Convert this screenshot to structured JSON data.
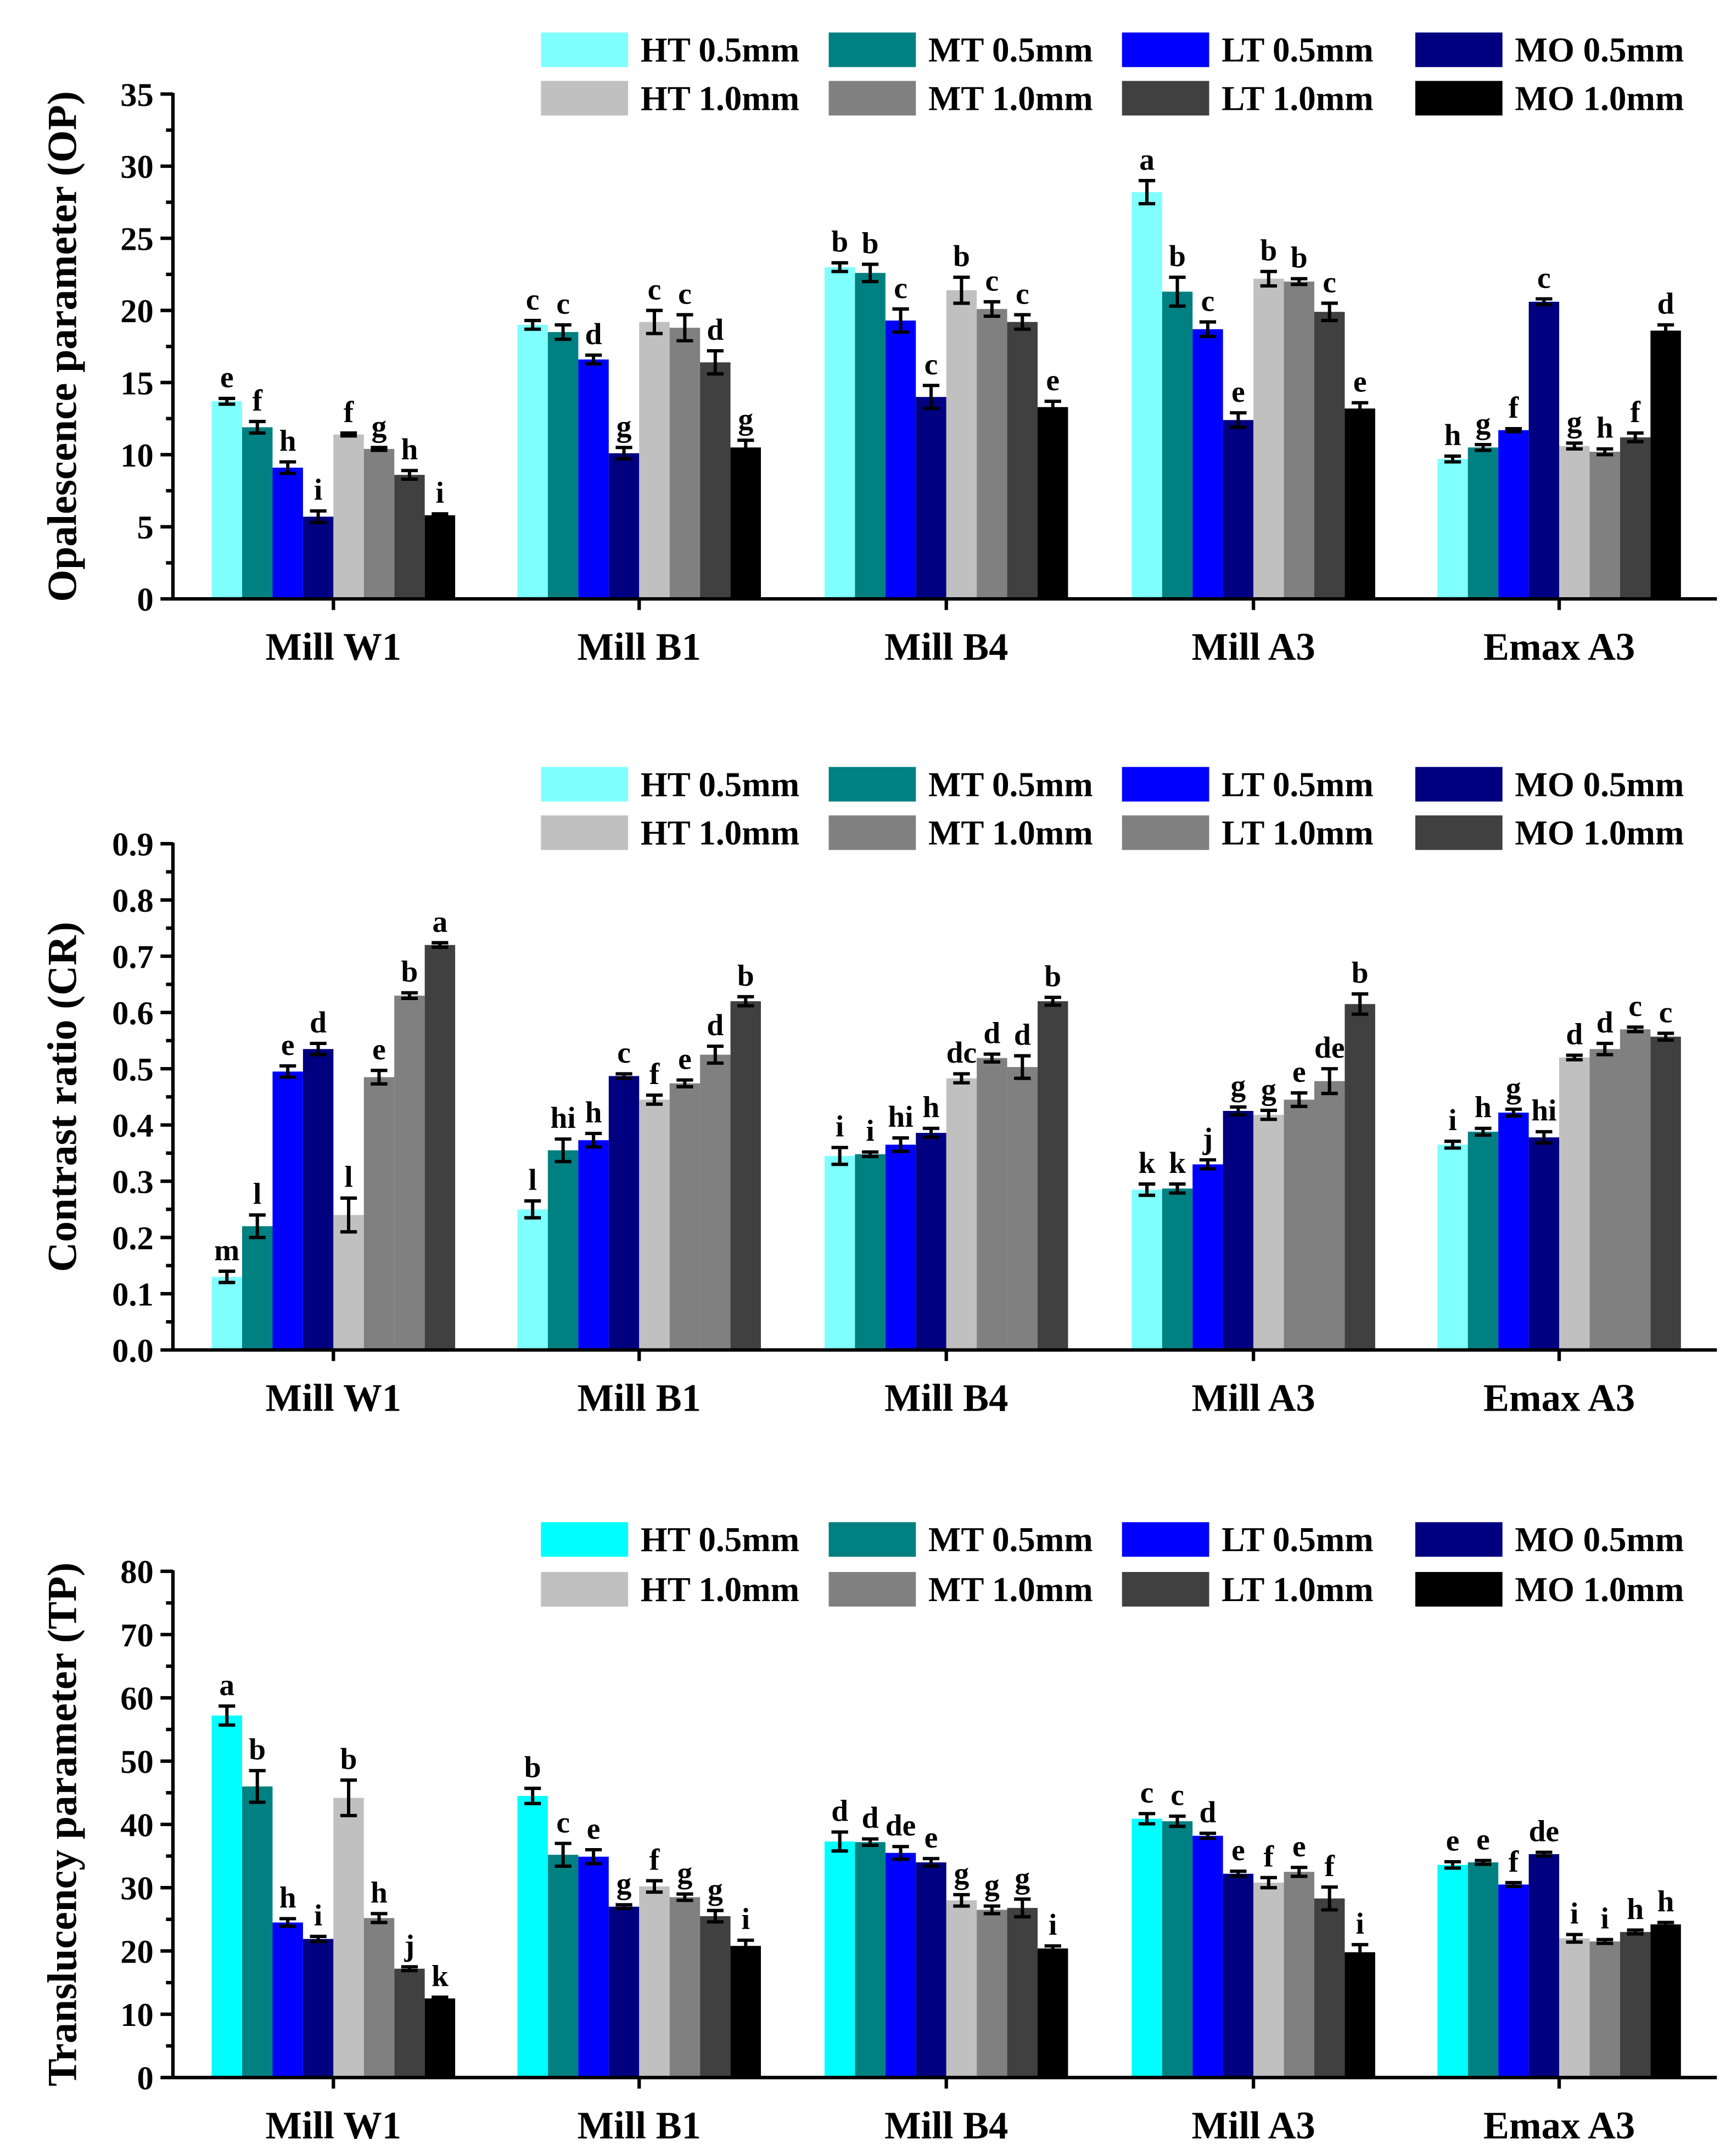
{
  "chart_data": [
    {
      "type": "bar",
      "id": "op",
      "ylabel": "Opalescence parameter (OP)",
      "xlabel": "",
      "ylim": [
        0,
        35
      ],
      "yticks": [
        0,
        5,
        10,
        15,
        20,
        25,
        30,
        35
      ],
      "ytick_labels": [
        "0",
        "5",
        "10",
        "15",
        "20",
        "25",
        "30",
        "35"
      ],
      "categories": [
        "Mill W1",
        "Mill B1",
        "Mill B4",
        "Mill A3",
        "Emax A3"
      ],
      "legend_position": "top-right",
      "series": [
        {
          "name": "HT 0.5mm",
          "color": "#80ffff",
          "values": [
            13.7,
            19.0,
            23.0,
            28.2,
            9.7
          ],
          "errors": [
            0.2,
            0.3,
            0.3,
            0.8,
            0.2
          ],
          "letters": [
            "e",
            "c",
            "b",
            "a",
            "h"
          ]
        },
        {
          "name": "MT 0.5mm",
          "color": "#008080",
          "values": [
            11.9,
            18.5,
            22.6,
            21.3,
            10.5
          ],
          "errors": [
            0.4,
            0.5,
            0.6,
            1.0,
            0.2
          ],
          "letters": [
            "f",
            "c",
            "b",
            "b",
            "g"
          ]
        },
        {
          "name": "LT  0.5mm",
          "color": "#0000ff",
          "values": [
            9.1,
            16.6,
            19.3,
            18.7,
            11.7
          ],
          "errors": [
            0.4,
            0.3,
            0.8,
            0.5,
            0.1
          ],
          "letters": [
            "h",
            "d",
            "c",
            "c",
            "f"
          ]
        },
        {
          "name": "MO 0.5mm",
          "color": "#000080",
          "values": [
            5.7,
            10.1,
            14.0,
            12.4,
            20.6
          ],
          "errors": [
            0.4,
            0.4,
            0.8,
            0.5,
            0.2
          ],
          "letters": [
            "i",
            "g",
            "c",
            "e",
            "c"
          ]
        },
        {
          "name": "HT 1.0mm",
          "color": "#c0c0c0",
          "values": [
            11.4,
            19.2,
            21.4,
            22.2,
            10.6
          ],
          "errors": [
            0.1,
            0.8,
            0.9,
            0.5,
            0.2
          ],
          "letters": [
            "f",
            "c",
            "b",
            "b",
            "g"
          ]
        },
        {
          "name": "MT 1.0mm",
          "color": "#808080",
          "values": [
            10.4,
            18.8,
            20.1,
            22.0,
            10.2
          ],
          "errors": [
            0.1,
            0.9,
            0.5,
            0.2,
            0.2
          ],
          "letters": [
            "g",
            "c",
            "c",
            "b",
            "h"
          ]
        },
        {
          "name": "LT  1.0mm",
          "color": "#404040",
          "values": [
            8.6,
            16.4,
            19.2,
            19.9,
            11.2
          ],
          "errors": [
            0.3,
            0.8,
            0.5,
            0.6,
            0.3
          ],
          "letters": [
            "h",
            "d",
            "c",
            "c",
            "f"
          ]
        },
        {
          "name": "MO 1.0mm",
          "color": "#000000",
          "values": [
            5.8,
            10.5,
            13.3,
            13.2,
            18.6
          ],
          "errors": [
            0.1,
            0.5,
            0.4,
            0.4,
            0.4
          ],
          "letters": [
            "i",
            "g",
            "e",
            "e",
            "d"
          ]
        }
      ]
    },
    {
      "type": "bar",
      "id": "cr",
      "ylabel": "Contrast ratio (CR)",
      "xlabel": "",
      "ylim": [
        0,
        0.9
      ],
      "yticks": [
        0,
        0.1,
        0.2,
        0.3,
        0.4,
        0.5,
        0.6,
        0.7,
        0.8,
        0.9
      ],
      "ytick_labels": [
        "0.0",
        "0.1",
        "0.2",
        "0.3",
        "0.4",
        "0.5",
        "0.6",
        "0.7",
        "0.8",
        "0.9"
      ],
      "categories": [
        "Mill W1",
        "Mill B1",
        "Mill B4",
        "Mill A3",
        "Emax A3"
      ],
      "legend_position": "top-right",
      "series": [
        {
          "name": "HT 0.5mm",
          "color": "#80ffff",
          "values": [
            0.13,
            0.25,
            0.345,
            0.285,
            0.365
          ],
          "errors": [
            0.01,
            0.015,
            0.015,
            0.01,
            0.006
          ],
          "letters": [
            "m",
            "l",
            "i",
            "k",
            "i"
          ]
        },
        {
          "name": "MT 0.5mm",
          "color": "#008080",
          "values": [
            0.22,
            0.355,
            0.348,
            0.287,
            0.388
          ],
          "errors": [
            0.02,
            0.02,
            0.004,
            0.008,
            0.006
          ],
          "letters": [
            "l",
            "hi",
            "i",
            "k",
            "h"
          ]
        },
        {
          "name": "LT  0.5mm",
          "color": "#0000ff",
          "values": [
            0.495,
            0.373,
            0.365,
            0.33,
            0.422
          ],
          "errors": [
            0.01,
            0.012,
            0.012,
            0.008,
            0.006
          ],
          "letters": [
            "e",
            "h",
            "hi",
            "j",
            "g"
          ]
        },
        {
          "name": "MO 0.5mm",
          "color": "#000080",
          "values": [
            0.535,
            0.487,
            0.386,
            0.425,
            0.378
          ],
          "errors": [
            0.01,
            0.004,
            0.008,
            0.007,
            0.01
          ],
          "letters": [
            "d",
            "c",
            "h",
            "g",
            "hi"
          ]
        },
        {
          "name": "HT 1.0mm",
          "color": "#c0c0c0",
          "values": [
            0.24,
            0.445,
            0.483,
            0.418,
            0.52
          ],
          "errors": [
            0.03,
            0.008,
            0.008,
            0.008,
            0.004
          ],
          "letters": [
            "l",
            "f",
            "dc",
            "g",
            "d"
          ]
        },
        {
          "name": "MT 1.0mm",
          "color": "#808080",
          "values": [
            0.485,
            0.474,
            0.519,
            0.445,
            0.535
          ],
          "errors": [
            0.012,
            0.006,
            0.007,
            0.012,
            0.01
          ],
          "letters": [
            "e",
            "e",
            "d",
            "e",
            "d"
          ]
        },
        {
          "name": "LT  1.0mm",
          "color": "#808080",
          "values": [
            0.63,
            0.525,
            0.503,
            0.478,
            0.57
          ],
          "errors": [
            0.005,
            0.015,
            0.02,
            0.022,
            0.004
          ],
          "letters": [
            "b",
            "d",
            "d",
            "de",
            "c"
          ]
        },
        {
          "name": "MO 1.0mm",
          "color": "#404040",
          "values": [
            0.72,
            0.62,
            0.62,
            0.615,
            0.557
          ],
          "errors": [
            0.004,
            0.008,
            0.007,
            0.018,
            0.006
          ],
          "letters": [
            "a",
            "b",
            "b",
            "b",
            "c"
          ]
        }
      ]
    },
    {
      "type": "bar",
      "id": "tp",
      "ylabel": "Translucency parameter (TP)",
      "xlabel": "",
      "ylim": [
        0,
        80
      ],
      "yticks": [
        0,
        10,
        20,
        30,
        40,
        50,
        60,
        70,
        80
      ],
      "ytick_labels": [
        "0",
        "10",
        "20",
        "30",
        "40",
        "50",
        "60",
        "70",
        "80"
      ],
      "categories": [
        "Mill W1",
        "Mill B1",
        "Mill B4",
        "Mill A3",
        "Emax A3"
      ],
      "legend_position": "top-right",
      "series": [
        {
          "name": "HT 0.5mm",
          "color": "#00ffff",
          "values": [
            57.2,
            44.5,
            37.3,
            40.9,
            33.6
          ],
          "errors": [
            1.5,
            1.2,
            1.5,
            0.8,
            0.5
          ],
          "letters": [
            "a",
            "b",
            "d",
            "c",
            "e"
          ]
        },
        {
          "name": "MT 0.5mm",
          "color": "#008080",
          "values": [
            46.0,
            35.2,
            37.2,
            40.5,
            34.0
          ],
          "errors": [
            2.5,
            1.8,
            0.5,
            0.8,
            0.3
          ],
          "letters": [
            "b",
            "c",
            "d",
            "c",
            "e"
          ]
        },
        {
          "name": "LT  0.5mm",
          "color": "#0000ff",
          "values": [
            24.5,
            34.9,
            35.5,
            38.2,
            30.5
          ],
          "errors": [
            0.6,
            1.1,
            1.0,
            0.4,
            0.3
          ],
          "letters": [
            "h",
            "e",
            "de",
            "d",
            "f"
          ]
        },
        {
          "name": "MO 0.5mm",
          "color": "#000080",
          "values": [
            21.9,
            27.0,
            34.0,
            32.2,
            35.3
          ],
          "errors": [
            0.4,
            0.3,
            0.6,
            0.4,
            0.3
          ],
          "letters": [
            "i",
            "g",
            "e",
            "e",
            "de"
          ]
        },
        {
          "name": "HT 1.0mm",
          "color": "#c0c0c0",
          "values": [
            44.2,
            30.2,
            28.0,
            30.8,
            22.0
          ],
          "errors": [
            2.8,
            0.9,
            0.9,
            0.8,
            0.6
          ],
          "letters": [
            "b",
            "f",
            "g",
            "f",
            "i"
          ]
        },
        {
          "name": "MT 1.0mm",
          "color": "#808080",
          "values": [
            25.2,
            28.5,
            26.5,
            32.5,
            21.5
          ],
          "errors": [
            0.7,
            0.5,
            0.6,
            0.7,
            0.3
          ],
          "letters": [
            "h",
            "g",
            "g",
            "e",
            "i"
          ]
        },
        {
          "name": "LT  1.0mm",
          "color": "#404040",
          "values": [
            17.2,
            25.5,
            26.8,
            28.3,
            23.0
          ],
          "errors": [
            0.3,
            0.9,
            1.4,
            1.8,
            0.3
          ],
          "letters": [
            "j",
            "g",
            "g",
            "f",
            "h"
          ]
        },
        {
          "name": "MO 1.0mm",
          "color": "#000000",
          "values": [
            12.5,
            20.8,
            20.4,
            19.8,
            24.2
          ],
          "errors": [
            0.2,
            0.9,
            0.4,
            1.2,
            0.3
          ],
          "letters": [
            "k",
            "i",
            "i",
            "i",
            "h"
          ]
        }
      ]
    }
  ]
}
